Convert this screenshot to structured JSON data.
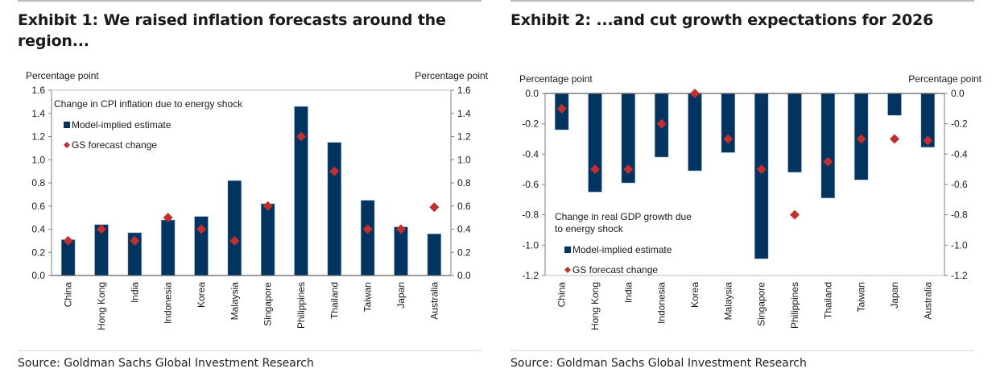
{
  "exhibits": [
    {
      "title": "Exhibit 1: We raised inflation forecasts around the region...",
      "source": "Source: Goldman Sachs Global Investment Research"
    },
    {
      "title": "Exhibit 2: ...and cut growth expectations for 2026",
      "source": "Source: Goldman Sachs Global Investment Research"
    }
  ],
  "colors": {
    "bar": "#03335F",
    "diamond": "#C0302E",
    "axis": "#7f7f7f"
  },
  "chart_data": [
    {
      "type": "bar",
      "title": "Exhibit 1: We raised inflation forecasts around the region...",
      "subtitle": "Change in CPI inflation due to energy shock",
      "ylabel_left": "Percentage point",
      "ylabel_right": "Percentage point",
      "ylim": [
        0.0,
        1.6
      ],
      "yticks": [
        "0.0",
        "0.2",
        "0.4",
        "0.6",
        "0.8",
        "1.0",
        "1.2",
        "1.4",
        "1.6"
      ],
      "grid": false,
      "legend_position": "top-left",
      "categories": [
        "China",
        "Hong Kong",
        "India",
        "Indonesia",
        "Korea",
        "Malaysia",
        "Singapore",
        "Philippines",
        "Thailand",
        "Taiwan",
        "Japan",
        "Australia"
      ],
      "series": [
        {
          "name": "Model-implied estimate",
          "kind": "bar",
          "values": [
            0.31,
            0.44,
            0.37,
            0.48,
            0.51,
            0.82,
            0.62,
            1.46,
            1.15,
            0.65,
            0.42,
            0.36
          ]
        },
        {
          "name": "GS forecast change",
          "kind": "diamond",
          "values": [
            0.3,
            0.4,
            0.3,
            0.5,
            0.4,
            0.3,
            0.6,
            1.2,
            0.9,
            0.4,
            0.4,
            0.59
          ]
        }
      ]
    },
    {
      "type": "bar",
      "title": "Exhibit 2: ...and cut growth expectations for 2026",
      "subtitle": "Change in real GDP growth due to energy shock",
      "ylabel_left": "Percentage point",
      "ylabel_right": "Percentage point",
      "ylim": [
        -1.2,
        0.0
      ],
      "yticks": [
        "0.0",
        "-0.2",
        "-0.4",
        "-0.6",
        "-0.8",
        "-1.0",
        "-1.2"
      ],
      "grid": false,
      "legend_position": "bottom-left",
      "categories": [
        "China",
        "Hong Kong",
        "India",
        "Indonesia",
        "Korea",
        "Malaysia",
        "Singapore",
        "Philippines",
        "Thailand",
        "Taiwan",
        "Japan",
        "Australia"
      ],
      "series": [
        {
          "name": "Model-implied estimate",
          "kind": "bar",
          "values": [
            -0.24,
            -0.65,
            -0.59,
            -0.42,
            -0.51,
            -0.39,
            -1.09,
            -0.52,
            -0.69,
            -0.57,
            -0.145,
            -0.355
          ]
        },
        {
          "name": "GS forecast change",
          "kind": "diamond",
          "values": [
            -0.1,
            -0.5,
            -0.5,
            -0.2,
            0.0,
            -0.3,
            -0.5,
            -0.8,
            -0.45,
            -0.3,
            -0.3,
            -0.31
          ]
        }
      ]
    }
  ]
}
